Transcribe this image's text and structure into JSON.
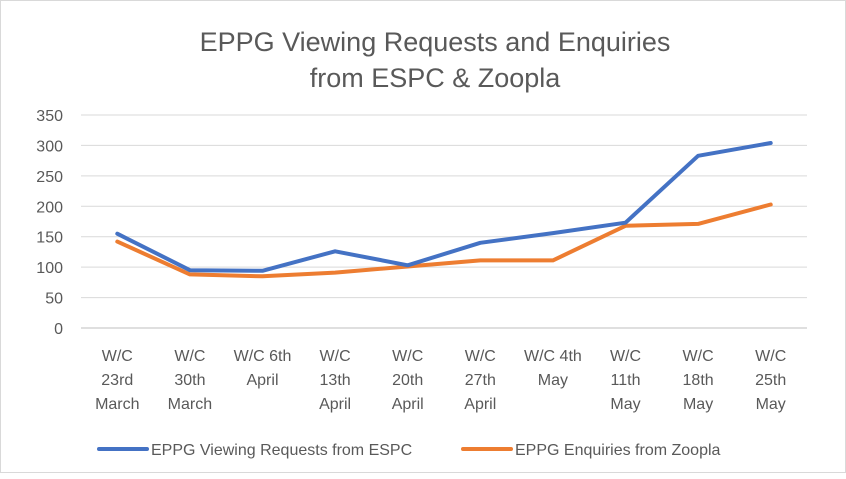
{
  "chart_data": {
    "type": "line",
    "title_lines": [
      "EPPG Viewing Requests and Enquiries",
      "from ESPC & Zoopla"
    ],
    "xlabel": "",
    "ylabel": "",
    "ylim": [
      0,
      350
    ],
    "y_ticks": [
      "0",
      "50",
      "100",
      "150",
      "200",
      "250",
      "300",
      "350"
    ],
    "grid": true,
    "legend_position": "bottom",
    "categories": [
      "W/C 23rd March",
      "W/C 30th March",
      "W/C 6th April",
      "W/C 13th April",
      "W/C 20th April",
      "W/C 27th April",
      "W/C 4th May",
      "W/C 11th May",
      "W/C 18th May",
      "W/C 25th May"
    ],
    "category_label_lines": [
      [
        "W/C",
        "23rd",
        "March"
      ],
      [
        "W/C",
        "30th",
        "March"
      ],
      [
        "W/C 6th",
        "April"
      ],
      [
        "W/C",
        "13th",
        "April"
      ],
      [
        "W/C",
        "20th",
        "April"
      ],
      [
        "W/C",
        "27th",
        "April"
      ],
      [
        "W/C 4th",
        "May"
      ],
      [
        "W/C",
        "11th",
        "May"
      ],
      [
        "W/C",
        "18th",
        "May"
      ],
      [
        "W/C",
        "25th",
        "May"
      ]
    ],
    "series": [
      {
        "name": "EPPG Viewing Requests from ESPC",
        "color": "#4472C4",
        "values": [
          155,
          95,
          94,
          126,
          103,
          140,
          156,
          173,
          283,
          304
        ]
      },
      {
        "name": "EPPG Enquiries from Zoopla",
        "color": "#ED7D31",
        "values": [
          142,
          88,
          85,
          91,
          101,
          111,
          111,
          168,
          171,
          203
        ]
      }
    ]
  }
}
